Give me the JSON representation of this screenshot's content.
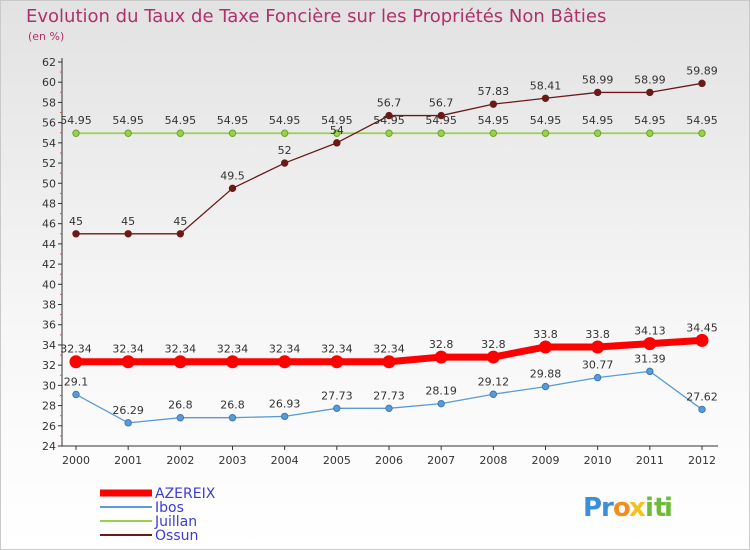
{
  "chart_data": {
    "type": "line",
    "title": "Evolution du Taux de Taxe Foncière sur les Propriétés Non Bâties",
    "subtitle": "(en %)",
    "x": [
      "2000",
      "2001",
      "2002",
      "2003",
      "2004",
      "2005",
      "2006",
      "2007",
      "2008",
      "2009",
      "2010",
      "2011",
      "2012"
    ],
    "ylim": [
      24,
      62
    ],
    "yticks": [
      24,
      26,
      28,
      30,
      32,
      34,
      36,
      38,
      40,
      42,
      44,
      46,
      48,
      50,
      52,
      54,
      56,
      58,
      60,
      62
    ],
    "grid": false,
    "legend_position": "bottom-left",
    "series": [
      {
        "name": "AZEREIX",
        "color": "#ff0000",
        "values": [
          32.34,
          32.34,
          32.34,
          32.34,
          32.34,
          32.34,
          32.34,
          32.8,
          32.8,
          33.8,
          33.8,
          34.13,
          34.45
        ],
        "labels": [
          "32.34",
          "32.34",
          "32.34",
          "32.34",
          "32.34",
          "32.34",
          "32.34",
          "32.8",
          "32.8",
          "33.8",
          "33.8",
          "34.13",
          "34.45"
        ]
      },
      {
        "name": "Ibos",
        "color": "#5b9bd5",
        "values": [
          29.1,
          26.29,
          26.8,
          26.8,
          26.93,
          27.73,
          27.73,
          28.19,
          29.12,
          29.88,
          30.77,
          31.39,
          27.62
        ],
        "labels": [
          "29.1",
          "26.29",
          "26.8",
          "26.8",
          "26.93",
          "27.73",
          "27.73",
          "28.19",
          "29.12",
          "29.88",
          "30.77",
          "31.39",
          "27.62"
        ]
      },
      {
        "name": "Juillan",
        "color": "#99d14d",
        "values": [
          54.95,
          54.95,
          54.95,
          54.95,
          54.95,
          54.95,
          54.95,
          54.95,
          54.95,
          54.95,
          54.95,
          54.95,
          54.95
        ],
        "labels": [
          "54.95",
          "54.95",
          "54.95",
          "54.95",
          "54.95",
          "54.95",
          "54.95",
          "54.95",
          "54.95",
          "54.95",
          "54.95",
          "54.95",
          "54.95"
        ]
      },
      {
        "name": "Ossun",
        "color": "#6b1a1a",
        "values": [
          45,
          45,
          45,
          49.5,
          52,
          54,
          56.7,
          56.7,
          57.83,
          58.41,
          58.99,
          58.99,
          59.89
        ],
        "labels": [
          "45",
          "45",
          "45",
          "49.5",
          "52",
          "54",
          "56.7",
          "56.7",
          "57.83",
          "58.41",
          "58.99",
          "58.99",
          "59.89"
        ]
      }
    ]
  },
  "branding": {
    "logo_letters": [
      "P",
      "r",
      "o",
      "x",
      "i",
      "t",
      "i"
    ],
    "logo_colors": [
      "#3b8fd8",
      "#3b8fd8",
      "#f28c1e",
      "#f2c31e",
      "#6dbb3c",
      "#6dbb3c",
      "#6dbb3c"
    ]
  }
}
